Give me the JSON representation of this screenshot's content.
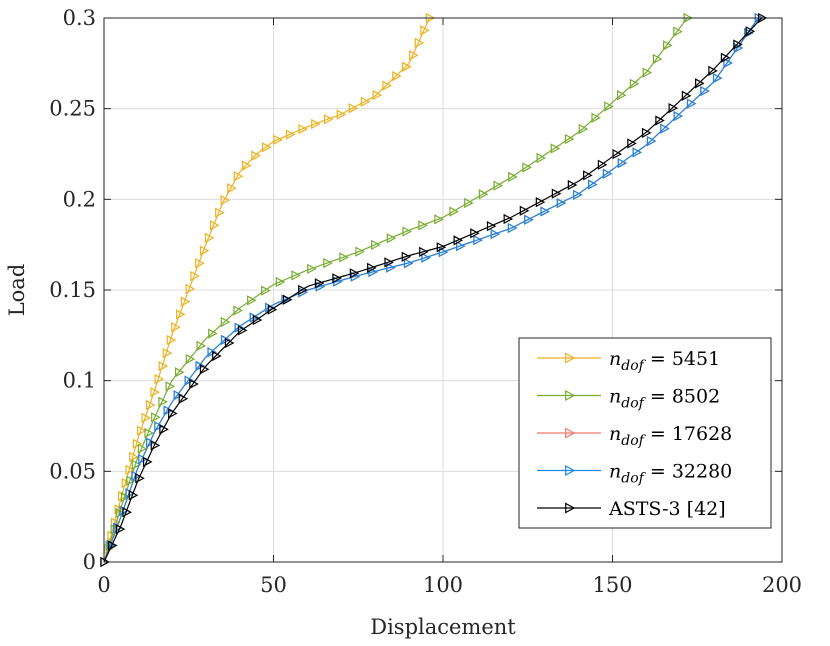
{
  "chart_data": {
    "type": "line",
    "title": "",
    "xlabel": "Displacement",
    "ylabel": "Load",
    "xlim": [
      0,
      200
    ],
    "ylim": [
      0,
      0.3
    ],
    "xticks": [
      0,
      50,
      100,
      150,
      200
    ],
    "yticks": [
      0,
      0.05,
      0.1,
      0.15,
      0.2,
      0.25,
      0.3
    ],
    "xtick_labels": [
      "0",
      "50",
      "100",
      "150",
      "200"
    ],
    "ytick_labels": [
      "0",
      "0.05",
      "0.1",
      "0.15",
      "0.2",
      "0.25",
      "0.3"
    ],
    "grid": true,
    "legend_position": "lower-right",
    "marker": "right-pointing triangle",
    "series": [
      {
        "name": "n_dof = 5451",
        "legend_main": "n",
        "legend_sub": "dof",
        "legend_value": "= 5451",
        "color": "#EDB120",
        "anchors": [
          [
            0,
            0
          ],
          [
            5,
            0.035
          ],
          [
            10,
            0.068
          ],
          [
            15,
            0.095
          ],
          [
            20,
            0.125
          ],
          [
            25,
            0.15
          ],
          [
            30,
            0.175
          ],
          [
            35,
            0.198
          ],
          [
            40,
            0.215
          ],
          [
            45,
            0.225
          ],
          [
            50,
            0.232
          ],
          [
            60,
            0.24
          ],
          [
            70,
            0.247
          ],
          [
            80,
            0.257
          ],
          [
            90,
            0.275
          ],
          [
            96,
            0.3
          ]
        ],
        "n_points": 50
      },
      {
        "name": "n_dof = 8502",
        "legend_main": "n",
        "legend_sub": "dof",
        "legend_value": "= 8502",
        "color": "#77AC30",
        "anchors": [
          [
            0,
            0
          ],
          [
            5,
            0.03
          ],
          [
            10,
            0.058
          ],
          [
            15,
            0.08
          ],
          [
            20,
            0.1
          ],
          [
            30,
            0.123
          ],
          [
            40,
            0.14
          ],
          [
            50,
            0.153
          ],
          [
            60,
            0.161
          ],
          [
            75,
            0.171
          ],
          [
            90,
            0.183
          ],
          [
            100,
            0.19
          ],
          [
            120,
            0.212
          ],
          [
            140,
            0.237
          ],
          [
            160,
            0.27
          ],
          [
            172,
            0.3
          ]
        ],
        "n_points": 50
      },
      {
        "name": "n_dof = 17628",
        "legend_main": "n",
        "legend_sub": "dof",
        "legend_value": "= 17628",
        "color": "#F07870",
        "anchors": [
          [
            0,
            0
          ],
          [
            5,
            0.025
          ],
          [
            10,
            0.052
          ],
          [
            15,
            0.072
          ],
          [
            20,
            0.088
          ],
          [
            30,
            0.113
          ],
          [
            40,
            0.13
          ],
          [
            50,
            0.142
          ],
          [
            60,
            0.15
          ],
          [
            75,
            0.158
          ],
          [
            90,
            0.165
          ],
          [
            100,
            0.171
          ],
          [
            120,
            0.184
          ],
          [
            140,
            0.203
          ],
          [
            160,
            0.23
          ],
          [
            180,
            0.265
          ],
          [
            193,
            0.3
          ]
        ],
        "n_points": 50
      },
      {
        "name": "n_dof = 32280",
        "legend_main": "n",
        "legend_sub": "dof",
        "legend_value": "= 32280",
        "color": "#1F86E0",
        "anchors": [
          [
            0,
            0
          ],
          [
            5,
            0.025
          ],
          [
            10,
            0.052
          ],
          [
            15,
            0.072
          ],
          [
            20,
            0.088
          ],
          [
            30,
            0.113
          ],
          [
            40,
            0.13
          ],
          [
            50,
            0.142
          ],
          [
            60,
            0.15
          ],
          [
            75,
            0.158
          ],
          [
            90,
            0.165
          ],
          [
            100,
            0.171
          ],
          [
            120,
            0.184
          ],
          [
            140,
            0.203
          ],
          [
            160,
            0.23
          ],
          [
            180,
            0.265
          ],
          [
            193,
            0.3
          ]
        ],
        "n_points": 50
      },
      {
        "name": "ASTS-3 [42]",
        "legend_main": "ASTS-3 [42]",
        "legend_sub": "",
        "legend_value": "",
        "color": "#000000",
        "anchors": [
          [
            0,
            0
          ],
          [
            5,
            0.02
          ],
          [
            10,
            0.045
          ],
          [
            15,
            0.065
          ],
          [
            20,
            0.082
          ],
          [
            30,
            0.108
          ],
          [
            40,
            0.127
          ],
          [
            50,
            0.14
          ],
          [
            60,
            0.152
          ],
          [
            75,
            0.16
          ],
          [
            90,
            0.169
          ],
          [
            100,
            0.174
          ],
          [
            120,
            0.19
          ],
          [
            140,
            0.21
          ],
          [
            160,
            0.237
          ],
          [
            180,
            0.272
          ],
          [
            194,
            0.3
          ]
        ],
        "n_points": 50
      }
    ]
  }
}
